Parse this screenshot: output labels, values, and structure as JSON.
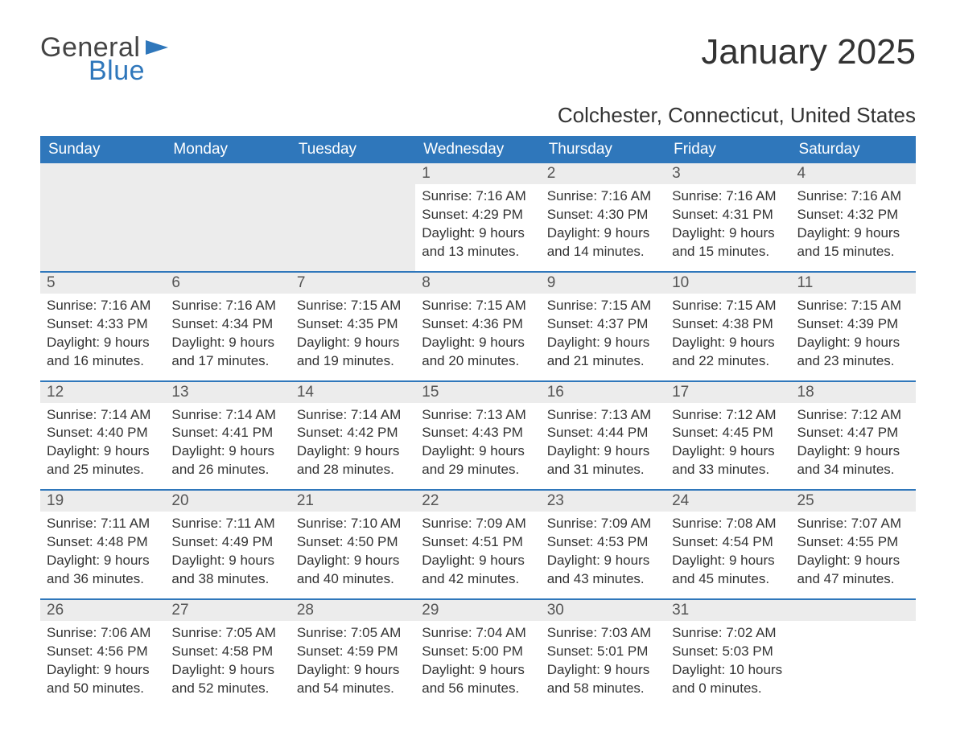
{
  "brand": {
    "word1": "General",
    "word2": "Blue",
    "word1_color": "#444444",
    "word2_color": "#2f77bb",
    "flag_color": "#2f77bb"
  },
  "title": "January 2025",
  "subtitle": "Colchester, Connecticut, United States",
  "colors": {
    "header_bg": "#2f77bb",
    "header_text": "#ffffff",
    "daynum_bg": "#ececec",
    "row_divider": "#2f77bb",
    "body_text": "#333333",
    "page_bg": "#ffffff"
  },
  "typography": {
    "title_fontsize": 44,
    "subtitle_fontsize": 26,
    "header_fontsize": 19,
    "daynum_fontsize": 19,
    "body_fontsize": 17
  },
  "day_headers": [
    "Sunday",
    "Monday",
    "Tuesday",
    "Wednesday",
    "Thursday",
    "Friday",
    "Saturday"
  ],
  "weeks": [
    [
      null,
      null,
      null,
      {
        "n": "1",
        "sunrise": "Sunrise: 7:16 AM",
        "sunset": "Sunset: 4:29 PM",
        "dl1": "Daylight: 9 hours",
        "dl2": "and 13 minutes."
      },
      {
        "n": "2",
        "sunrise": "Sunrise: 7:16 AM",
        "sunset": "Sunset: 4:30 PM",
        "dl1": "Daylight: 9 hours",
        "dl2": "and 14 minutes."
      },
      {
        "n": "3",
        "sunrise": "Sunrise: 7:16 AM",
        "sunset": "Sunset: 4:31 PM",
        "dl1": "Daylight: 9 hours",
        "dl2": "and 15 minutes."
      },
      {
        "n": "4",
        "sunrise": "Sunrise: 7:16 AM",
        "sunset": "Sunset: 4:32 PM",
        "dl1": "Daylight: 9 hours",
        "dl2": "and 15 minutes."
      }
    ],
    [
      {
        "n": "5",
        "sunrise": "Sunrise: 7:16 AM",
        "sunset": "Sunset: 4:33 PM",
        "dl1": "Daylight: 9 hours",
        "dl2": "and 16 minutes."
      },
      {
        "n": "6",
        "sunrise": "Sunrise: 7:16 AM",
        "sunset": "Sunset: 4:34 PM",
        "dl1": "Daylight: 9 hours",
        "dl2": "and 17 minutes."
      },
      {
        "n": "7",
        "sunrise": "Sunrise: 7:15 AM",
        "sunset": "Sunset: 4:35 PM",
        "dl1": "Daylight: 9 hours",
        "dl2": "and 19 minutes."
      },
      {
        "n": "8",
        "sunrise": "Sunrise: 7:15 AM",
        "sunset": "Sunset: 4:36 PM",
        "dl1": "Daylight: 9 hours",
        "dl2": "and 20 minutes."
      },
      {
        "n": "9",
        "sunrise": "Sunrise: 7:15 AM",
        "sunset": "Sunset: 4:37 PM",
        "dl1": "Daylight: 9 hours",
        "dl2": "and 21 minutes."
      },
      {
        "n": "10",
        "sunrise": "Sunrise: 7:15 AM",
        "sunset": "Sunset: 4:38 PM",
        "dl1": "Daylight: 9 hours",
        "dl2": "and 22 minutes."
      },
      {
        "n": "11",
        "sunrise": "Sunrise: 7:15 AM",
        "sunset": "Sunset: 4:39 PM",
        "dl1": "Daylight: 9 hours",
        "dl2": "and 23 minutes."
      }
    ],
    [
      {
        "n": "12",
        "sunrise": "Sunrise: 7:14 AM",
        "sunset": "Sunset: 4:40 PM",
        "dl1": "Daylight: 9 hours",
        "dl2": "and 25 minutes."
      },
      {
        "n": "13",
        "sunrise": "Sunrise: 7:14 AM",
        "sunset": "Sunset: 4:41 PM",
        "dl1": "Daylight: 9 hours",
        "dl2": "and 26 minutes."
      },
      {
        "n": "14",
        "sunrise": "Sunrise: 7:14 AM",
        "sunset": "Sunset: 4:42 PM",
        "dl1": "Daylight: 9 hours",
        "dl2": "and 28 minutes."
      },
      {
        "n": "15",
        "sunrise": "Sunrise: 7:13 AM",
        "sunset": "Sunset: 4:43 PM",
        "dl1": "Daylight: 9 hours",
        "dl2": "and 29 minutes."
      },
      {
        "n": "16",
        "sunrise": "Sunrise: 7:13 AM",
        "sunset": "Sunset: 4:44 PM",
        "dl1": "Daylight: 9 hours",
        "dl2": "and 31 minutes."
      },
      {
        "n": "17",
        "sunrise": "Sunrise: 7:12 AM",
        "sunset": "Sunset: 4:45 PM",
        "dl1": "Daylight: 9 hours",
        "dl2": "and 33 minutes."
      },
      {
        "n": "18",
        "sunrise": "Sunrise: 7:12 AM",
        "sunset": "Sunset: 4:47 PM",
        "dl1": "Daylight: 9 hours",
        "dl2": "and 34 minutes."
      }
    ],
    [
      {
        "n": "19",
        "sunrise": "Sunrise: 7:11 AM",
        "sunset": "Sunset: 4:48 PM",
        "dl1": "Daylight: 9 hours",
        "dl2": "and 36 minutes."
      },
      {
        "n": "20",
        "sunrise": "Sunrise: 7:11 AM",
        "sunset": "Sunset: 4:49 PM",
        "dl1": "Daylight: 9 hours",
        "dl2": "and 38 minutes."
      },
      {
        "n": "21",
        "sunrise": "Sunrise: 7:10 AM",
        "sunset": "Sunset: 4:50 PM",
        "dl1": "Daylight: 9 hours",
        "dl2": "and 40 minutes."
      },
      {
        "n": "22",
        "sunrise": "Sunrise: 7:09 AM",
        "sunset": "Sunset: 4:51 PM",
        "dl1": "Daylight: 9 hours",
        "dl2": "and 42 minutes."
      },
      {
        "n": "23",
        "sunrise": "Sunrise: 7:09 AM",
        "sunset": "Sunset: 4:53 PM",
        "dl1": "Daylight: 9 hours",
        "dl2": "and 43 minutes."
      },
      {
        "n": "24",
        "sunrise": "Sunrise: 7:08 AM",
        "sunset": "Sunset: 4:54 PM",
        "dl1": "Daylight: 9 hours",
        "dl2": "and 45 minutes."
      },
      {
        "n": "25",
        "sunrise": "Sunrise: 7:07 AM",
        "sunset": "Sunset: 4:55 PM",
        "dl1": "Daylight: 9 hours",
        "dl2": "and 47 minutes."
      }
    ],
    [
      {
        "n": "26",
        "sunrise": "Sunrise: 7:06 AM",
        "sunset": "Sunset: 4:56 PM",
        "dl1": "Daylight: 9 hours",
        "dl2": "and 50 minutes."
      },
      {
        "n": "27",
        "sunrise": "Sunrise: 7:05 AM",
        "sunset": "Sunset: 4:58 PM",
        "dl1": "Daylight: 9 hours",
        "dl2": "and 52 minutes."
      },
      {
        "n": "28",
        "sunrise": "Sunrise: 7:05 AM",
        "sunset": "Sunset: 4:59 PM",
        "dl1": "Daylight: 9 hours",
        "dl2": "and 54 minutes."
      },
      {
        "n": "29",
        "sunrise": "Sunrise: 7:04 AM",
        "sunset": "Sunset: 5:00 PM",
        "dl1": "Daylight: 9 hours",
        "dl2": "and 56 minutes."
      },
      {
        "n": "30",
        "sunrise": "Sunrise: 7:03 AM",
        "sunset": "Sunset: 5:01 PM",
        "dl1": "Daylight: 9 hours",
        "dl2": "and 58 minutes."
      },
      {
        "n": "31",
        "sunrise": "Sunrise: 7:02 AM",
        "sunset": "Sunset: 5:03 PM",
        "dl1": "Daylight: 10 hours",
        "dl2": "and 0 minutes."
      },
      null
    ]
  ]
}
